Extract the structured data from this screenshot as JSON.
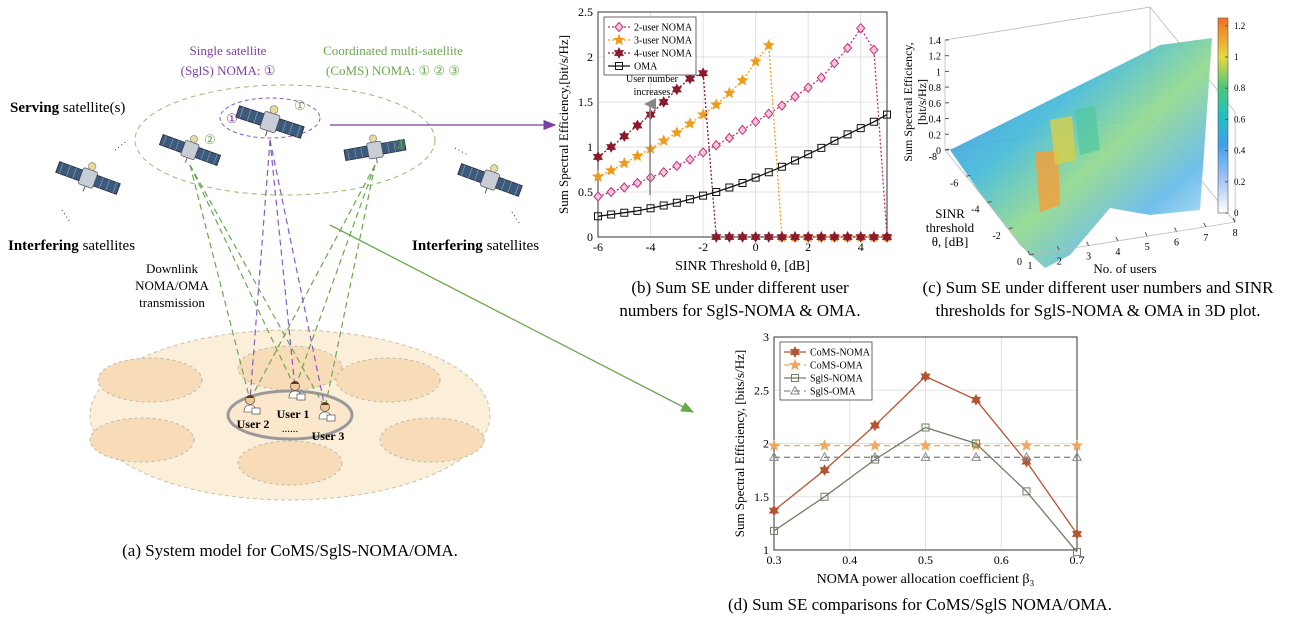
{
  "diagram": {
    "single_satellite_lines": [
      "Single satellite",
      "(SglS) NOMA: ①"
    ],
    "coordinated_lines": [
      "Coordinated multi-satellite",
      "(CoMS) NOMA: ① ② ③"
    ],
    "serving": {
      "bold": "Serving",
      "rest": " satellite(s)"
    },
    "interfering_left": {
      "bold": "Interfering",
      "rest": " satellites"
    },
    "interfering_right": {
      "bold": "Interfering",
      "rest": " satellites"
    },
    "satellite_marks": [
      "①",
      "①",
      "②",
      "③"
    ],
    "downlink_lines": [
      "Downlink",
      "NOMA/OMA",
      "transmission"
    ],
    "users": [
      "User 1",
      "User 2",
      "User 3"
    ],
    "ellipsis": "......",
    "caption": "(a) System model for CoMS/SglS-NOMA/OMA."
  },
  "chart_data": [
    {
      "type": "line",
      "xlabel": "SINR Threshold θ, [dB]",
      "ylabel": "Sum Spectral Efficiency,[bit/s/Hz]",
      "caption_lines": [
        "(b) Sum SE under different user",
        "numbers for SglS-NOMA & OMA."
      ],
      "annotation_lines": [
        "User number",
        "increases"
      ],
      "x": [
        -6,
        -5.5,
        -5,
        -4.5,
        -4,
        -3.5,
        -3,
        -2.5,
        -2,
        -1.5,
        -1,
        -0.5,
        0,
        0.5,
        1,
        1.5,
        2,
        2.5,
        3,
        3.5,
        4,
        4.5,
        5
      ],
      "xlim": [
        -6,
        5
      ],
      "xticks": [
        -6,
        -4,
        -2,
        0,
        2,
        4
      ],
      "ylim": [
        0,
        2.5
      ],
      "yticks": [
        0,
        0.5,
        1,
        1.5,
        2,
        2.5
      ],
      "grid": true,
      "legend": "upper left",
      "series": [
        {
          "name": "2-user NOMA",
          "color": "#c2307a",
          "marker": "diamond",
          "linestyle": "dotted",
          "values": [
            0.45,
            0.5,
            0.55,
            0.6,
            0.66,
            0.72,
            0.79,
            0.86,
            0.94,
            1.02,
            1.1,
            1.19,
            1.28,
            1.37,
            1.46,
            1.56,
            1.66,
            1.77,
            1.93,
            2.1,
            2.32,
            2.08,
            0
          ]
        },
        {
          "name": "3-user NOMA",
          "color": "#f09a1a",
          "marker": "star",
          "linestyle": "dotted",
          "values": [
            0.67,
            0.74,
            0.82,
            0.9,
            0.98,
            1.07,
            1.16,
            1.26,
            1.36,
            1.47,
            1.6,
            1.74,
            1.95,
            2.13,
            0,
            0,
            0,
            0,
            0,
            0,
            0,
            0,
            0
          ]
        },
        {
          "name": "4-user NOMA",
          "color": "#8b1a2b",
          "marker": "hexagram",
          "linestyle": "dotted",
          "values": [
            0.89,
            1.0,
            1.12,
            1.24,
            1.36,
            1.5,
            1.64,
            1.76,
            1.82,
            0,
            0,
            0,
            0,
            0,
            0,
            0,
            0,
            0,
            0,
            0,
            0,
            0,
            0
          ]
        },
        {
          "name": "OMA",
          "color": "#111111",
          "marker": "square",
          "linestyle": "solid",
          "values": [
            0.23,
            0.25,
            0.27,
            0.29,
            0.32,
            0.35,
            0.38,
            0.42,
            0.46,
            0.5,
            0.55,
            0.6,
            0.66,
            0.72,
            0.78,
            0.85,
            0.92,
            0.99,
            1.07,
            1.14,
            1.21,
            1.28,
            1.36
          ]
        }
      ]
    },
    {
      "type": "surface",
      "xlabel": "No. of users",
      "ylabel_lines": [
        "SINR",
        "threshold",
        "θ, [dB]"
      ],
      "zlabel_lines": [
        "Sum Spectral Efficiency,",
        "[bit/s/Hz]"
      ],
      "caption_lines": [
        "(c) Sum SE under different user numbers and SINR",
        "thresholds for SglS-NOMA & OMA in 3D plot."
      ],
      "xlim": [
        1,
        8
      ],
      "xticks": [
        1,
        2,
        3,
        4,
        5,
        6,
        7,
        8
      ],
      "ylim": [
        -8,
        0
      ],
      "yticks": [
        -8,
        -6,
        -4,
        -2,
        0
      ],
      "zlim": [
        0,
        1.4
      ],
      "zticks": [
        0,
        0.2,
        0.4,
        0.6,
        0.8,
        1,
        1.2,
        1.4
      ],
      "colorbar": {
        "lim": [
          0,
          1.25
        ],
        "ticks": [
          0,
          0.2,
          0.4,
          0.6,
          0.8,
          1,
          1.2
        ]
      }
    },
    {
      "type": "line",
      "xlabel": "NOMA power allocation coefficient β₃",
      "ylabel": "Sum Spectral Efficiency, [bits/s/Hz]",
      "caption_lines": [
        "(d) Sum SE comparisons for CoMS/SglS NOMA/OMA."
      ],
      "x": [
        0.3,
        0.3667,
        0.4333,
        0.5,
        0.5667,
        0.6333,
        0.7
      ],
      "xlim": [
        0.3,
        0.7
      ],
      "xticks": [
        0.3,
        0.4,
        0.5,
        0.6,
        0.7
      ],
      "ylim": [
        1,
        3
      ],
      "yticks": [
        1,
        1.5,
        2,
        2.5,
        3
      ],
      "grid": true,
      "legend": "upper left",
      "series": [
        {
          "name": "CoMS-NOMA",
          "color": "#b5532f",
          "marker": "hexagram",
          "linestyle": "solid",
          "values": [
            1.37,
            1.75,
            2.17,
            2.63,
            2.41,
            1.83,
            1.15
          ]
        },
        {
          "name": "CoMS-OMA",
          "color": "#f0a860",
          "marker": "star",
          "linestyle": "dashed",
          "values": [
            1.98,
            1.98,
            1.98,
            1.98,
            1.98,
            1.98,
            1.98
          ]
        },
        {
          "name": "SglS-NOMA",
          "color": "#6e7f66",
          "marker": "square",
          "linestyle": "solid",
          "values": [
            1.18,
            1.5,
            1.85,
            2.15,
            2.0,
            1.55,
            0.98
          ]
        },
        {
          "name": "SglS-OMA",
          "color": "#8a8a8a",
          "marker": "triangle",
          "linestyle": "dashed",
          "values": [
            1.87,
            1.87,
            1.87,
            1.87,
            1.87,
            1.87,
            1.87
          ]
        }
      ]
    }
  ]
}
